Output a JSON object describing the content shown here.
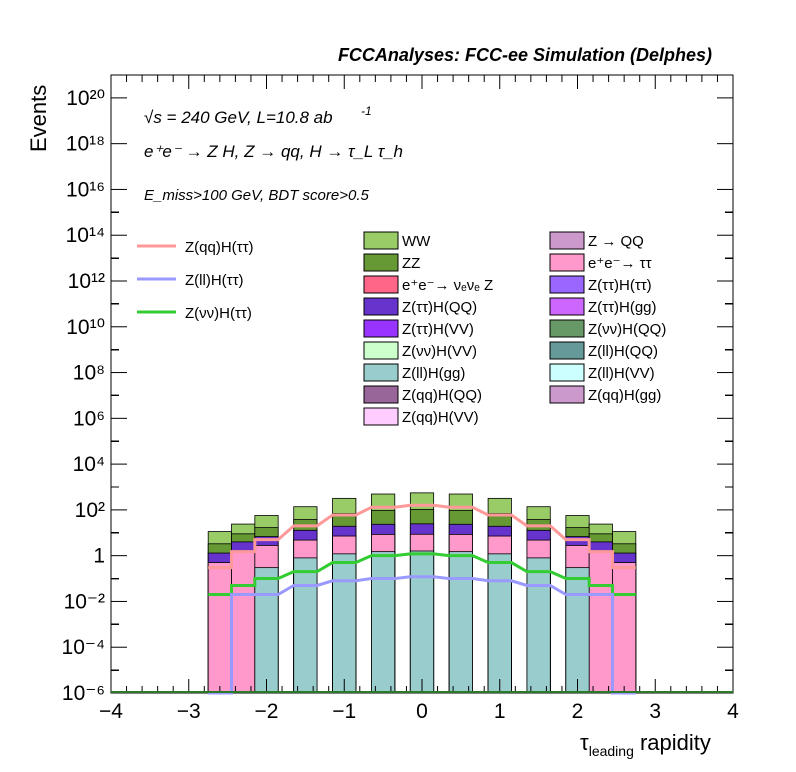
{
  "header": {
    "title": "FCCAnalyses: FCC-ee Simulation (Delphes)"
  },
  "annotations": {
    "line1": "√s = 240 GeV, L=10.8 ab",
    "line1_sup": "-1",
    "line2": "e⁺e⁻ → Z H, Z → qq, H → τ_L τ_h",
    "line3": "E_miss>100 GeV, BDT score>0.5"
  },
  "axes": {
    "ylabel": "Events",
    "xlabel_main": "τ",
    "xlabel_sub": "leading",
    "xlabel_rest": " rapidity"
  },
  "legend": {
    "lines": [
      {
        "label": "Z(qq)H(ττ)",
        "color": "#ff9999"
      },
      {
        "label": "Z(ll)H(ττ)",
        "color": "#9999ff"
      },
      {
        "label": "Z(νν)H(ττ)",
        "color": "#33cc33"
      }
    ],
    "boxes": [
      {
        "label": "WW",
        "color": "#99cc66"
      },
      {
        "label": "Z → QQ",
        "color": "#cc99cc"
      },
      {
        "label": "ZZ",
        "color": "#669933"
      },
      {
        "label": "e⁺e⁻→ ττ",
        "color": "#ff99cc"
      },
      {
        "label": "e⁺e⁻→ νₑνₑ Z",
        "color": "#ff6688"
      },
      {
        "label": "Z(ττ)H(ττ)",
        "color": "#9966ff"
      },
      {
        "label": "Z(ττ)H(QQ)",
        "color": "#6633cc"
      },
      {
        "label": "Z(ττ)H(gg)",
        "color": "#cc66ff"
      },
      {
        "label": "Z(ττ)H(VV)",
        "color": "#9933ff"
      },
      {
        "label": "Z(νν)H(QQ)",
        "color": "#669966"
      },
      {
        "label": "Z(νν)H(VV)",
        "color": "#ccffcc"
      },
      {
        "label": "Z(ll)H(QQ)",
        "color": "#669999"
      },
      {
        "label": "Z(ll)H(gg)",
        "color": "#99cccc"
      },
      {
        "label": "Z(ll)H(VV)",
        "color": "#ccffff"
      },
      {
        "label": "Z(qq)H(QQ)",
        "color": "#996699"
      },
      {
        "label": "Z(qq)H(gg)",
        "color": "#cc99cc"
      },
      {
        "label": "Z(qq)H(VV)",
        "color": "#ffccff"
      }
    ]
  },
  "chart_data": {
    "type": "area",
    "title": "FCCAnalyses: FCC-ee Simulation (Delphes)",
    "xlabel": "τ_leading rapidity",
    "ylabel": "Events",
    "xlim": [
      -4,
      4
    ],
    "ylim": [
      1e-06,
      1e+21
    ],
    "yscale": "log",
    "x_ticks": [
      "−4",
      "−3",
      "−2",
      "−1",
      "0",
      "1",
      "2",
      "3",
      "4"
    ],
    "y_ticks": [
      "10⁻⁶",
      "10⁻⁴",
      "10⁻²",
      "1",
      "10²",
      "10⁴",
      "10⁶",
      "10⁸",
      "10¹⁰",
      "10¹²",
      "10¹⁴",
      "10¹⁶",
      "10¹⁸",
      "10²⁰"
    ],
    "x": [
      -2.6,
      -2.3,
      -2.0,
      -1.5,
      -1.0,
      -0.5,
      0.0,
      0.5,
      1.0,
      1.5,
      2.0,
      2.3,
      2.6
    ],
    "series": [
      {
        "name": "Z(ll)H(gg)",
        "values": [
          1e-06,
          1e-06,
          0.3,
          0.8,
          1.2,
          1.5,
          1.6,
          1.5,
          1.2,
          0.8,
          0.3,
          1e-06,
          1e-06
        ]
      },
      {
        "name": "e⁺e⁻→ ττ",
        "values": [
          0.5,
          1.5,
          2.5,
          4,
          6,
          7,
          7,
          7,
          6,
          4,
          2.5,
          1.5,
          0.5
        ]
      },
      {
        "name": "Z(ττ)H(QQ)",
        "values": [
          0.8,
          2.5,
          4,
          8,
          12,
          15,
          16,
          15,
          12,
          8,
          4,
          2.5,
          0.8
        ]
      },
      {
        "name": "ZZ",
        "values": [
          2,
          5,
          10,
          25,
          50,
          70,
          80,
          70,
          50,
          25,
          10,
          5,
          2
        ]
      },
      {
        "name": "WW",
        "values": [
          8,
          15,
          40,
          100,
          250,
          400,
          450,
          400,
          250,
          100,
          40,
          15,
          8
        ]
      },
      {
        "name": "Z(qq)H(ττ)",
        "values": [
          0.3,
          1.5,
          5,
          20,
          60,
          130,
          160,
          130,
          60,
          20,
          5,
          1.5,
          0.3
        ]
      },
      {
        "name": "Z(νν)H(ττ)",
        "values": [
          0.02,
          0.05,
          0.1,
          0.2,
          0.5,
          1.0,
          1.2,
          1.0,
          0.5,
          0.2,
          0.1,
          0.05,
          0.02
        ]
      },
      {
        "name": "Z(ll)H(ττ)",
        "values": [
          1e-06,
          0.02,
          0.02,
          0.05,
          0.08,
          0.1,
          0.12,
          0.1,
          0.08,
          0.05,
          0.02,
          0.02,
          1e-06
        ]
      }
    ]
  }
}
